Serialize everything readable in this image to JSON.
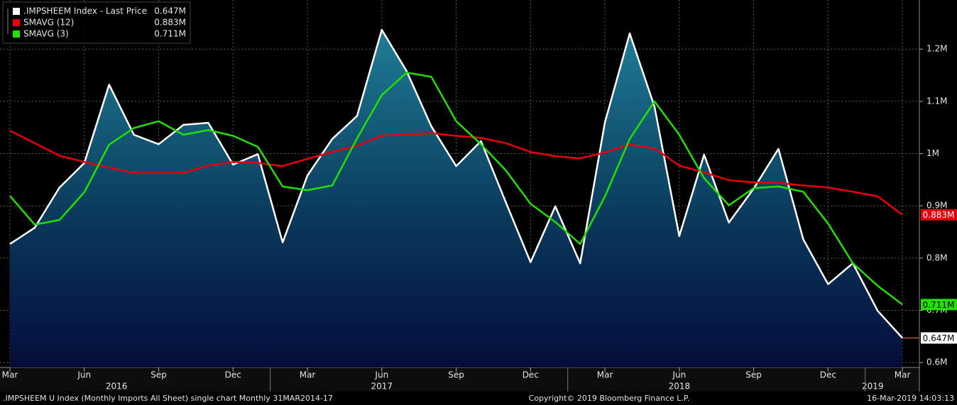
{
  "chart_data": {
    "type": "line",
    "categories": [
      "Mar",
      null,
      null,
      "Jun",
      null,
      null,
      "Sep",
      null,
      null,
      "Dec",
      null,
      null,
      "Mar",
      null,
      null,
      "Jun",
      null,
      null,
      "Sep",
      null,
      null,
      "Dec",
      null,
      null,
      "Mar",
      null,
      null,
      "Jun",
      null,
      null,
      "Sep",
      null,
      null,
      "Dec",
      null,
      null,
      "Mar"
    ],
    "year_labels": [
      "2016",
      "2017",
      "2018",
      "2019"
    ],
    "series": [
      {
        "name": ".IMPSHEEM Index - Last Price",
        "color": "#ffffff",
        "last_label": "0.647M",
        "area": true,
        "values": [
          0.827,
          0.858,
          0.935,
          0.982,
          1.132,
          1.036,
          1.018,
          1.055,
          1.059,
          0.979,
          0.999,
          0.83,
          0.958,
          1.028,
          1.072,
          1.237,
          1.158,
          1.052,
          0.976,
          1.024,
          0.907,
          0.792,
          0.899,
          0.79,
          1.06,
          1.23,
          1.09,
          0.842,
          0.998,
          0.868,
          0.933,
          1.009,
          0.836,
          0.75,
          0.79,
          0.699,
          0.647
        ]
      },
      {
        "name": "SMAVG (12)",
        "color": "#e8000b",
        "last_label": "0.883M",
        "values": [
          1.044,
          1.02,
          0.996,
          0.984,
          0.973,
          0.963,
          0.963,
          0.963,
          0.977,
          0.984,
          0.982,
          0.976,
          0.99,
          1.003,
          1.015,
          1.034,
          1.037,
          1.039,
          1.034,
          1.03,
          1.02,
          1.003,
          0.995,
          0.991,
          1.002,
          1.017,
          1.01,
          0.977,
          0.964,
          0.949,
          0.945,
          0.944,
          0.939,
          0.935,
          0.927,
          0.918,
          0.883
        ]
      },
      {
        "name": "SMAVG (3)",
        "color": "#22e000",
        "last_label": "0.711M",
        "values": [
          0.919,
          0.864,
          0.873,
          0.926,
          1.017,
          1.049,
          1.062,
          1.036,
          1.045,
          1.034,
          1.013,
          0.937,
          0.93,
          0.939,
          1.029,
          1.112,
          1.155,
          1.147,
          1.062,
          1.018,
          0.968,
          0.904,
          0.869,
          0.827,
          0.918,
          1.028,
          1.1,
          1.036,
          0.953,
          0.901,
          0.934,
          0.937,
          0.927,
          0.866,
          0.79,
          0.747,
          0.711
        ]
      }
    ],
    "ylim": [
      0.588,
      1.294
    ],
    "yticks": [
      {
        "value": 0.6,
        "label": "0.6M"
      },
      {
        "value": 0.7,
        "label": "0.7M"
      },
      {
        "value": 0.8,
        "label": "0.8M"
      },
      {
        "value": 0.9,
        "label": "0.9M"
      },
      {
        "value": 1.0,
        "label": "1M"
      },
      {
        "value": 1.1,
        "label": "1.1M"
      },
      {
        "value": 1.2,
        "label": "1.2M"
      }
    ],
    "grid": true,
    "legend": "top-left",
    "footer": {
      "left": ".IMPSHEEM U Index (Monthly Imports All Sheet) single chart  Monthly 31MAR2014-17",
      "center": "Copyright© 2019 Bloomberg Finance L.P.",
      "right": "16-Mar-2019 14:03:13"
    }
  }
}
